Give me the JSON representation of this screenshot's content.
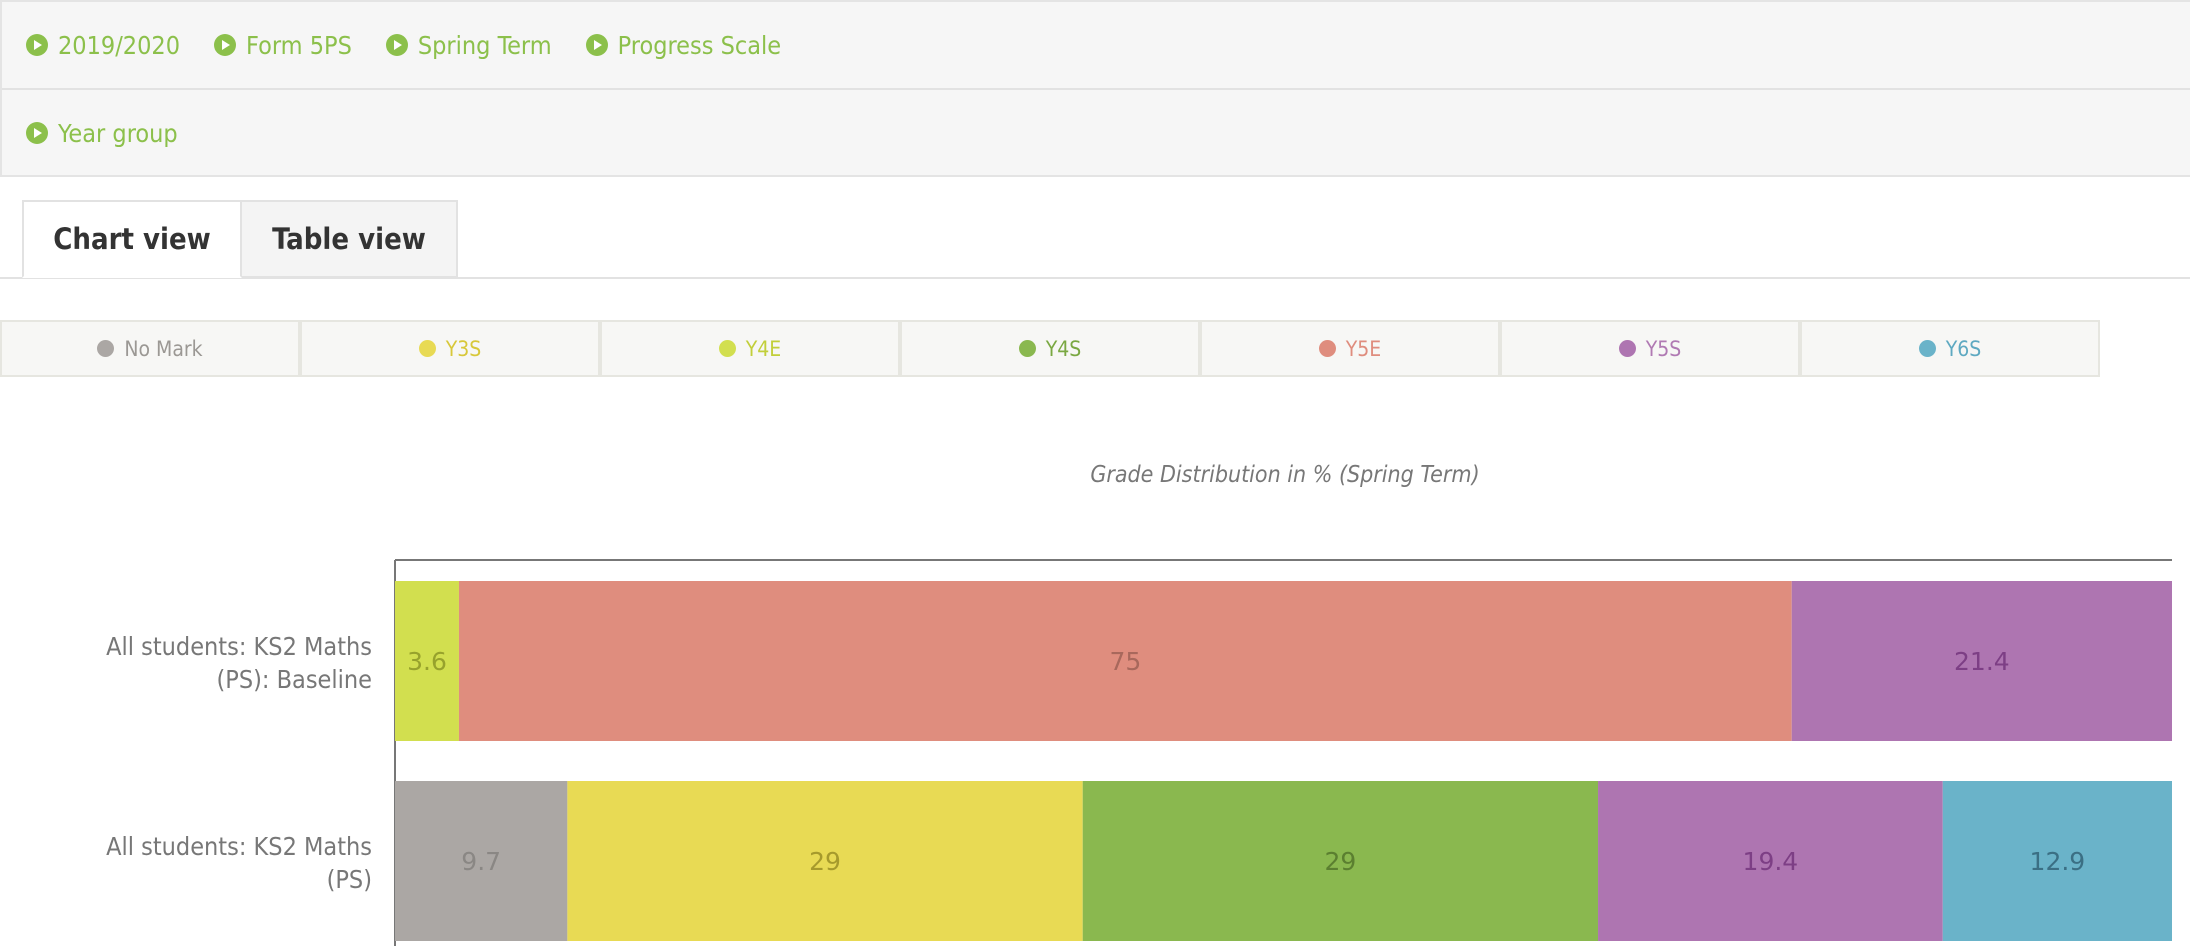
{
  "filters": {
    "row1": [
      "2019/2020",
      "Form 5PS",
      "Spring Term",
      "Progress Scale"
    ],
    "row2": [
      "Year group"
    ]
  },
  "tabs": [
    {
      "label": "Chart view",
      "active": true
    },
    {
      "label": "Table view",
      "active": false
    }
  ],
  "legend": [
    {
      "label": "No Mark",
      "color": "#aba7a4",
      "text": "#9b9894"
    },
    {
      "label": "Y3S",
      "color": "#e8da54",
      "text": "#d8c83a"
    },
    {
      "label": "Y4E",
      "color": "#d2df4f",
      "text": "#c2cf3a"
    },
    {
      "label": "Y4S",
      "color": "#8ab84f",
      "text": "#7aa842"
    },
    {
      "label": "Y5E",
      "color": "#df8d7e",
      "text": "#df8d7e"
    },
    {
      "label": "Y5S",
      "color": "#ae75b1",
      "text": "#b07ab3"
    },
    {
      "label": "Y6S",
      "color": "#6ab3c9",
      "text": "#5ea9c1"
    }
  ],
  "chart_data": {
    "type": "bar",
    "orientation": "horizontal",
    "stacked": true,
    "title": "Grade Distribution in % (Spring Term)",
    "xlim": [
      0,
      100
    ],
    "categories": [
      "All students: KS2 Maths (PS): Baseline",
      "All students: KS2 Maths (PS)"
    ],
    "category_lines": [
      [
        "All students: KS2 Maths",
        "(PS): Baseline"
      ],
      [
        "All students: KS2 Maths",
        "(PS)"
      ]
    ],
    "series": [
      {
        "name": "No Mark",
        "values": [
          0,
          9.7
        ],
        "label_color": "#8a8784"
      },
      {
        "name": "Y3S",
        "values": [
          0,
          29
        ],
        "label_color": "#a69a2c"
      },
      {
        "name": "Y4E",
        "values": [
          3.6,
          0
        ],
        "label_color": "#97a22c"
      },
      {
        "name": "Y4S",
        "values": [
          0,
          29
        ],
        "label_color": "#5b7f30"
      },
      {
        "name": "Y5E",
        "values": [
          75,
          0
        ],
        "label_color": "#a8685c"
      },
      {
        "name": "Y5S",
        "values": [
          21.4,
          19.4
        ],
        "label_color": "#7d3f85"
      },
      {
        "name": "Y6S",
        "values": [
          0,
          12.9
        ],
        "label_color": "#3b6f84"
      }
    ]
  }
}
